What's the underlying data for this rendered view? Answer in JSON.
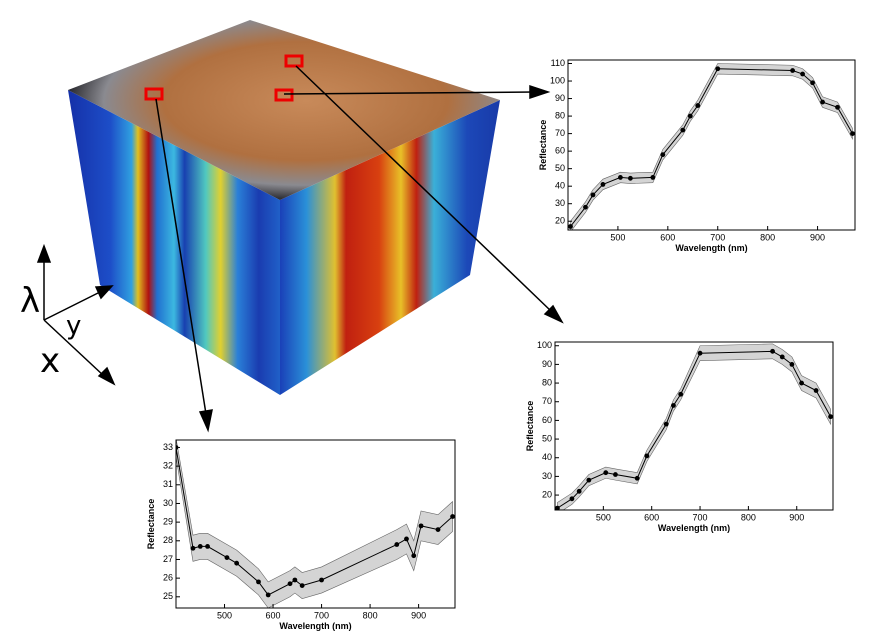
{
  "diagram": {
    "axis_labels": [
      "λ",
      "y",
      "x"
    ]
  },
  "chart_data": [
    {
      "type": "line",
      "x_label": "Wavelength (nm)",
      "y_label": "Reflectance",
      "x": [
        405,
        435,
        450,
        470,
        505,
        525,
        570,
        590,
        630,
        645,
        660,
        700,
        850,
        870,
        890,
        910,
        940,
        970
      ],
      "series": [
        {
          "color": "#000000",
          "values": [
            17,
            28,
            35,
            41,
            45,
            44.5,
            45,
            58,
            72,
            80,
            86,
            107,
            106,
            104,
            99,
            88,
            85,
            70
          ],
          "errors": [
            3,
            3,
            3,
            3,
            3,
            3,
            3,
            3,
            3,
            3,
            3,
            3,
            3,
            3,
            3,
            3,
            3,
            3
          ]
        }
      ],
      "xlim": [
        400,
        975
      ],
      "ylim": [
        15,
        112
      ],
      "xticks": [
        500,
        600,
        700,
        800,
        900
      ],
      "yticks": [
        20,
        30,
        40,
        50,
        60,
        70,
        80,
        90,
        100,
        110
      ]
    },
    {
      "type": "line",
      "x_label": "Wavelength (nm)",
      "y_label": "Reflectance",
      "x": [
        405,
        435,
        450,
        470,
        505,
        525,
        570,
        590,
        630,
        645,
        660,
        700,
        850,
        870,
        890,
        910,
        940,
        970
      ],
      "series": [
        {
          "color": "#000000",
          "values": [
            13,
            18,
            22,
            28,
            32,
            31,
            29,
            41,
            58,
            68,
            74,
            96,
            97,
            94,
            90,
            80,
            76,
            62
          ],
          "errors": [
            3,
            3,
            3,
            3,
            3,
            3,
            3,
            3,
            3,
            3,
            3,
            4,
            4,
            4,
            4,
            4,
            4,
            4
          ]
        }
      ],
      "xlim": [
        400,
        975
      ],
      "ylim": [
        12,
        102
      ],
      "xticks": [
        500,
        600,
        700,
        800,
        900
      ],
      "yticks": [
        20,
        30,
        40,
        50,
        60,
        70,
        80,
        90,
        100
      ]
    },
    {
      "type": "line",
      "x_label": "Wavelength (nm)",
      "y_label": "Reflectance",
      "x": [
        400,
        435,
        450,
        465,
        505,
        525,
        570,
        590,
        635,
        645,
        660,
        700,
        855,
        875,
        890,
        905,
        940,
        970
      ],
      "series": [
        {
          "color": "#000000",
          "values": [
            33,
            27.6,
            27.7,
            27.7,
            27.1,
            26.8,
            25.8,
            25.1,
            25.7,
            25.9,
            25.6,
            25.9,
            27.8,
            28.1,
            27.2,
            28.8,
            28.6,
            29.3
          ],
          "errors": [
            0.5,
            0.7,
            0.7,
            0.7,
            0.7,
            0.7,
            0.7,
            0.7,
            0.7,
            0.7,
            0.7,
            0.7,
            0.8,
            0.8,
            0.8,
            0.8,
            0.8,
            0.8
          ]
        }
      ],
      "xlim": [
        400,
        975
      ],
      "ylim": [
        24.4,
        33.4
      ],
      "xticks": [
        500,
        600,
        700,
        800,
        900
      ],
      "yticks": [
        25,
        26,
        27,
        28,
        29,
        30,
        31,
        32,
        33
      ]
    }
  ]
}
